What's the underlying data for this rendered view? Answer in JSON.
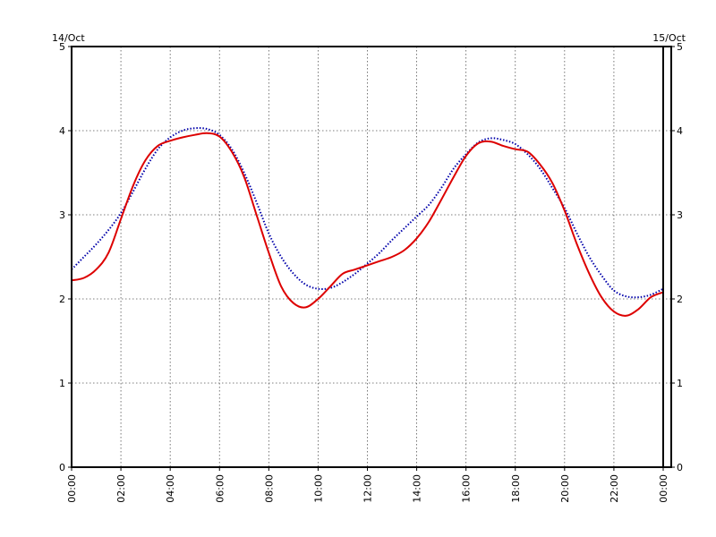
{
  "chart_data": {
    "type": "line",
    "date_start": "14/Oct",
    "date_end": "15/Oct",
    "xlim": [
      0,
      24
    ],
    "ylim": [
      0,
      5
    ],
    "x_ticks": [
      {
        "value": 0,
        "label": "00:00"
      },
      {
        "value": 2,
        "label": "02:00"
      },
      {
        "value": 4,
        "label": "04:00"
      },
      {
        "value": 6,
        "label": "06:00"
      },
      {
        "value": 8,
        "label": "08:00"
      },
      {
        "value": 10,
        "label": "10:00"
      },
      {
        "value": 12,
        "label": "12:00"
      },
      {
        "value": 14,
        "label": "14:00"
      },
      {
        "value": 16,
        "label": "16:00"
      },
      {
        "value": 18,
        "label": "18:00"
      },
      {
        "value": 20,
        "label": "20:00"
      },
      {
        "value": 22,
        "label": "22:00"
      },
      {
        "value": 24,
        "label": "00:00"
      }
    ],
    "y_ticks": [
      {
        "value": 0,
        "label": "0"
      },
      {
        "value": 1,
        "label": "1"
      },
      {
        "value": 2,
        "label": "2"
      },
      {
        "value": 3,
        "label": "3"
      },
      {
        "value": 4,
        "label": "4"
      },
      {
        "value": 5,
        "label": "5"
      }
    ],
    "grid": true,
    "series": [
      {
        "color": "#0000aa",
        "style": "dotted",
        "x": [
          0,
          0.5,
          1,
          1.5,
          2,
          2.5,
          3,
          3.5,
          4,
          4.5,
          5,
          5.5,
          6,
          6.5,
          7,
          7.5,
          8,
          8.5,
          9,
          9.5,
          10,
          10.5,
          11,
          11.5,
          12,
          12.5,
          13,
          13.5,
          14,
          14.5,
          15,
          15.5,
          16,
          16.5,
          17,
          17.5,
          18,
          18.5,
          19,
          19.5,
          20,
          20.5,
          21,
          21.5,
          22,
          22.5,
          23,
          23.5,
          24
        ],
        "y": [
          2.35,
          2.5,
          2.65,
          2.82,
          3.02,
          3.28,
          3.55,
          3.78,
          3.92,
          4.0,
          4.03,
          4.02,
          3.95,
          3.78,
          3.5,
          3.15,
          2.78,
          2.5,
          2.3,
          2.17,
          2.12,
          2.13,
          2.2,
          2.3,
          2.42,
          2.55,
          2.7,
          2.84,
          2.98,
          3.12,
          3.32,
          3.55,
          3.72,
          3.86,
          3.91,
          3.89,
          3.84,
          3.72,
          3.55,
          3.32,
          3.08,
          2.78,
          2.5,
          2.28,
          2.1,
          2.03,
          2.02,
          2.05,
          2.12
        ]
      },
      {
        "color": "#dd0000",
        "style": "solid",
        "x": [
          0,
          0.5,
          1,
          1.5,
          2,
          2.5,
          3,
          3.5,
          4,
          4.5,
          5,
          5.5,
          6,
          6.5,
          7,
          7.5,
          8,
          8.5,
          9,
          9.5,
          10,
          10.5,
          11,
          11.5,
          12,
          12.5,
          13,
          13.5,
          14,
          14.5,
          15,
          15.5,
          16,
          16.5,
          17,
          17.5,
          18,
          18.5,
          19,
          19.5,
          20,
          20.5,
          21,
          21.5,
          22,
          22.5,
          23,
          23.5,
          24
        ],
        "y": [
          2.22,
          2.25,
          2.35,
          2.55,
          2.95,
          3.35,
          3.65,
          3.82,
          3.88,
          3.92,
          3.95,
          3.97,
          3.93,
          3.75,
          3.45,
          3.0,
          2.55,
          2.15,
          1.95,
          1.9,
          2.0,
          2.15,
          2.3,
          2.35,
          2.4,
          2.45,
          2.5,
          2.58,
          2.72,
          2.92,
          3.18,
          3.45,
          3.7,
          3.85,
          3.87,
          3.82,
          3.78,
          3.75,
          3.6,
          3.38,
          3.05,
          2.65,
          2.3,
          2.02,
          1.85,
          1.8,
          1.88,
          2.02,
          2.08
        ]
      }
    ]
  }
}
